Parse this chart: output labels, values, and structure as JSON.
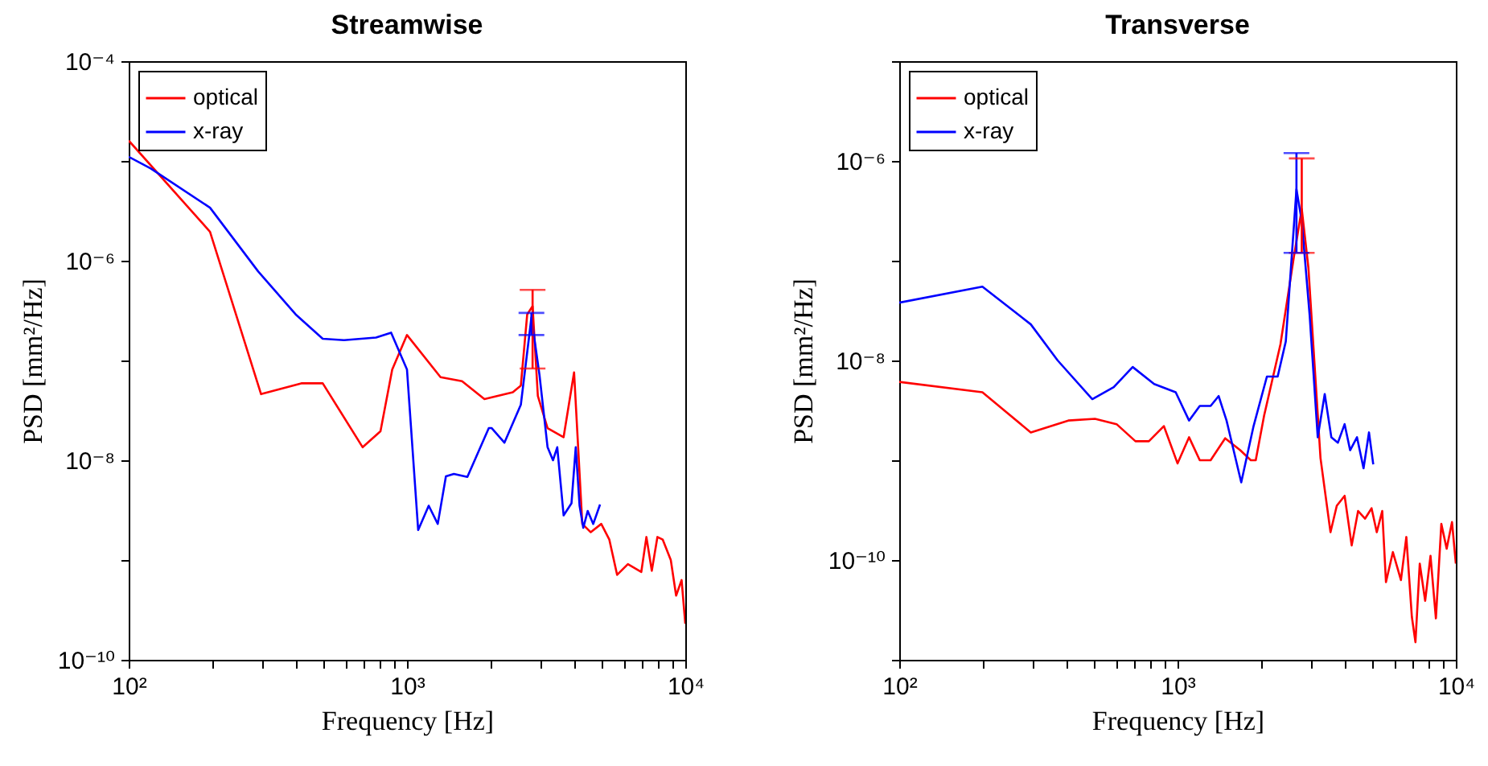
{
  "chart_data": [
    {
      "type": "line",
      "title": "Streamwise",
      "xlabel": "Frequency [Hz]",
      "ylabel": "PSD [mm²/Hz]",
      "log": "xy",
      "legend": "top left",
      "xlim": [
        100,
        10000
      ],
      "xticks": [
        {
          "value": 100,
          "label": "10²"
        },
        {
          "value": 200,
          "label": null
        },
        {
          "value": 300,
          "label": null
        },
        {
          "value": 400,
          "label": null
        },
        {
          "value": 500,
          "label": null
        },
        {
          "value": 600,
          "label": null
        },
        {
          "value": 700,
          "label": null
        },
        {
          "value": 800,
          "label": null
        },
        {
          "value": 900,
          "label": null
        },
        {
          "value": 1000,
          "label": "10³"
        },
        {
          "value": 2000,
          "label": null
        },
        {
          "value": 3000,
          "label": null
        },
        {
          "value": 4000,
          "label": null
        },
        {
          "value": 5000,
          "label": null
        },
        {
          "value": 6000,
          "label": null
        },
        {
          "value": 7000,
          "label": null
        },
        {
          "value": 8000,
          "label": null
        },
        {
          "value": 9000,
          "label": null
        },
        {
          "value": 10000,
          "label": "10⁴"
        }
      ],
      "ylim": [
        1e-10,
        0.0001
      ],
      "yticks": [
        {
          "value": 1e-10,
          "label": "10⁻¹⁰"
        },
        {
          "value": 1e-09,
          "label": null
        },
        {
          "value": 1e-08,
          "label": "10⁻⁸"
        },
        {
          "value": 1e-07,
          "label": null
        },
        {
          "value": 1e-06,
          "label": "10⁻⁶"
        },
        {
          "value": 1e-05,
          "label": null
        },
        {
          "value": 0.0001,
          "label": "10⁻⁴"
        }
      ],
      "series": [
        {
          "name": "optical",
          "color": "#ff0000",
          "x": [
            100,
            196,
            299,
            417,
            498,
            693,
            803,
            885,
            1000,
            1320,
            1577,
            1898,
            2400,
            2565,
            2704,
            2827,
            2953,
            3200,
            3653,
            3985,
            4265,
            4570,
            4990,
            5335,
            5690,
            6220,
            6950,
            7250,
            7580,
            7940,
            8300,
            8870,
            9270,
            9700,
            10000
          ],
          "values": [
            1.6e-05,
            1.95e-06,
            4.6e-08,
            5.9e-08,
            5.9e-08,
            1.35e-08,
            1.95e-08,
            8.1e-08,
            1.8e-07,
            6.8e-08,
            6.2e-08,
            4.1e-08,
            4.8e-08,
            5.6e-08,
            2.9e-07,
            3.5e-07,
            4.4e-08,
            2.1e-08,
            1.7e-08,
            7.6e-08,
            2.3e-09,
            1.9e-09,
            2.3e-09,
            1.6e-09,
            7.1e-10,
            9.1e-10,
            7.6e-10,
            1.7e-09,
            7.8e-10,
            1.7e-09,
            1.6e-09,
            1e-09,
            4.4e-10,
            6.3e-10,
            2.3e-10
          ],
          "errors": [
            null,
            null,
            null,
            null,
            null,
            null,
            null,
            null,
            null,
            null,
            null,
            null,
            null,
            null,
            null,
            [
              8.3e-08,
              5.1e-07
            ],
            null,
            null,
            null,
            null,
            null,
            null,
            null,
            null,
            null,
            null,
            null,
            null,
            null,
            null,
            null,
            null,
            null,
            null,
            null
          ]
        },
        {
          "name": "x-ray",
          "color": "#0000ff",
          "x": [
            100,
            120,
            196,
            292,
            398,
            498,
            594,
            774,
            877,
            1000,
            1097,
            1197,
            1290,
            1380,
            1474,
            1648,
            1968,
            2016,
            2239,
            2565,
            2800,
            2994,
            3200,
            3347,
            3467,
            3655,
            3900,
            4040,
            4170,
            4300,
            4460,
            4670,
            4940
          ],
          "values": [
            1.1e-05,
            8.4e-06,
            3.4e-06,
            7.8e-07,
            2.9e-07,
            1.65e-07,
            1.6e-07,
            1.7e-07,
            1.9e-07,
            8.1e-08,
            2e-09,
            3.5e-09,
            2.3e-09,
            6.9e-09,
            7.3e-09,
            6.8e-09,
            2.1e-08,
            2.1e-08,
            1.5e-08,
            3.6e-08,
            2.7e-07,
            7.1e-08,
            1.35e-08,
            1e-08,
            1.35e-08,
            2.8e-09,
            3.7e-09,
            1.35e-08,
            3.5e-09,
            2.1e-09,
            3.1e-09,
            2.3e-09,
            3.6e-09
          ],
          "errors": [
            null,
            null,
            null,
            null,
            null,
            null,
            null,
            null,
            null,
            null,
            null,
            null,
            null,
            null,
            null,
            null,
            null,
            null,
            null,
            null,
            [
              1.8e-07,
              3e-07
            ],
            null,
            null,
            null,
            null,
            null,
            null,
            null,
            null,
            null,
            null,
            null,
            null
          ]
        }
      ]
    },
    {
      "type": "line",
      "title": "Transverse",
      "xlabel": "Frequency [Hz]",
      "ylabel": "PSD [mm²/Hz]",
      "log": "xy",
      "legend": "top left",
      "xlim": [
        100,
        10000
      ],
      "xticks": [
        {
          "value": 100,
          "label": "10²"
        },
        {
          "value": 200,
          "label": null
        },
        {
          "value": 300,
          "label": null
        },
        {
          "value": 400,
          "label": null
        },
        {
          "value": 500,
          "label": null
        },
        {
          "value": 600,
          "label": null
        },
        {
          "value": 700,
          "label": null
        },
        {
          "value": 800,
          "label": null
        },
        {
          "value": 900,
          "label": null
        },
        {
          "value": 1000,
          "label": "10³"
        },
        {
          "value": 2000,
          "label": null
        },
        {
          "value": 3000,
          "label": null
        },
        {
          "value": 4000,
          "label": null
        },
        {
          "value": 5000,
          "label": null
        },
        {
          "value": 6000,
          "label": null
        },
        {
          "value": 7000,
          "label": null
        },
        {
          "value": 8000,
          "label": null
        },
        {
          "value": 9000,
          "label": null
        },
        {
          "value": 10000,
          "label": "10⁴"
        }
      ],
      "ylim": [
        1e-11,
        1e-05
      ],
      "yticks": [
        {
          "value": 1e-11,
          "label": null
        },
        {
          "value": 1e-10,
          "label": "10⁻¹⁰"
        },
        {
          "value": 1e-09,
          "label": null
        },
        {
          "value": 1e-08,
          "label": "10⁻⁸"
        },
        {
          "value": 1e-07,
          "label": null
        },
        {
          "value": 1e-06,
          "label": "10⁻⁶"
        },
        {
          "value": 1e-05,
          "label": null
        }
      ],
      "series": [
        {
          "name": "optical",
          "color": "#ff0000",
          "x": [
            100,
            199,
            297,
            405,
            505,
            604,
            706,
            789,
            893,
            1000,
            1100,
            1202,
            1315,
            1483,
            1680,
            1834,
            1910,
            2047,
            2343,
            2617,
            2795,
            2953,
            3264,
            3545,
            3735,
            3985,
            4225,
            4455,
            4720,
            4980,
            5200,
            5440,
            5610,
            5940,
            6350,
            6640,
            6950,
            7160,
            7420,
            7760,
            8110,
            8480,
            8870,
            9270,
            9690,
            10000
          ],
          "values": [
            6.1e-09,
            4.8e-09,
            1.9e-09,
            2.5e-09,
            2.6e-09,
            2.3e-09,
            1.55e-09,
            1.55e-09,
            2.2e-09,
            9.3e-10,
            1.7e-09,
            1e-09,
            1e-09,
            1.66e-09,
            1.26e-09,
            1e-09,
            1e-09,
            2.8e-09,
            1.45e-08,
            1.08e-07,
            3.3e-07,
            8.5e-08,
            1.05e-09,
            1.9e-10,
            3.5e-10,
            4.4e-10,
            1.4e-10,
            3.1e-10,
            2.6e-10,
            3.3e-10,
            1.9e-10,
            3.1e-10,
            6e-11,
            1.2e-10,
            6.3e-11,
            1.7e-10,
            2.7e-11,
            1.5e-11,
            9.2e-11,
            3.9e-11,
            1.1e-10,
            2.6e-11,
            2.3e-10,
            1.3e-10,
            2.4e-10,
            9.2e-11
          ],
          "errors": [
            null,
            null,
            null,
            null,
            null,
            null,
            null,
            null,
            null,
            null,
            null,
            null,
            null,
            null,
            null,
            null,
            null,
            null,
            null,
            null,
            [
              1.2e-07,
              1.06e-06
            ],
            null,
            null,
            null,
            null,
            null,
            null,
            null,
            null,
            null,
            null,
            null,
            null,
            null,
            null,
            null,
            null,
            null,
            null,
            null,
            null,
            null,
            null,
            null,
            null,
            null
          ]
        },
        {
          "name": "x-ray",
          "color": "#0000ff",
          "x": [
            100,
            199,
            297,
            371,
            494,
            590,
            690,
            824,
            985,
            1100,
            1202,
            1315,
            1405,
            1500,
            1694,
            1876,
            2095,
            2290,
            2449,
            2675,
            2795,
            2985,
            3190,
            3380,
            3570,
            3770,
            3985,
            4170,
            4415,
            4660,
            4875,
            5050
          ],
          "values": [
            3.8e-08,
            5.5e-08,
            2.3e-08,
            1e-08,
            4.1e-09,
            5.4e-09,
            8.6e-09,
            5.8e-09,
            4.8e-09,
            2.5e-09,
            3.5e-09,
            3.5e-09,
            4.4e-09,
            2.5e-09,
            6e-10,
            2.2e-09,
            6.9e-09,
            6.9e-09,
            1.55e-08,
            5.2e-07,
            2.5e-07,
            2.8e-08,
            1.7e-09,
            4.6e-09,
            1.7e-09,
            1.5e-09,
            2.3e-09,
            1.26e-09,
            1.7e-09,
            8.3e-10,
            1.9e-09,
            9.1e-10
          ],
          "errors": [
            null,
            null,
            null,
            null,
            null,
            null,
            null,
            null,
            null,
            null,
            null,
            null,
            null,
            null,
            null,
            null,
            null,
            null,
            null,
            [
              1.2e-07,
              1.2e-06
            ],
            null,
            null,
            null,
            null,
            null,
            null,
            null,
            null,
            null,
            null,
            null,
            null
          ]
        }
      ]
    }
  ]
}
